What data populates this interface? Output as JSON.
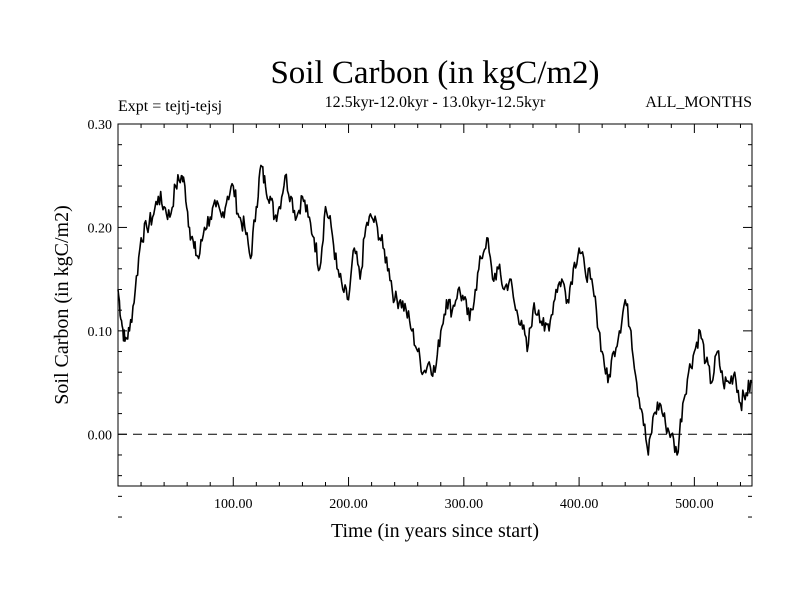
{
  "chart_data": {
    "type": "line",
    "title": "Soil Carbon (in kgC/m2)",
    "subtitle": "12.5kyr-12.0kyr - 13.0kyr-12.5kyr",
    "expt_label": "Expt = tejtj-tejsj",
    "months_label": "ALL_MONTHS",
    "xlabel": "Time (in years since start)",
    "ylabel": "Soil Carbon (in kgC/m2)",
    "xlim": [
      0,
      550
    ],
    "ylim": [
      -0.05,
      0.3
    ],
    "x_ticks": [
      100,
      200,
      300,
      400,
      500
    ],
    "x_tick_labels": [
      "100.00",
      "200.00",
      "300.00",
      "400.00",
      "500.00"
    ],
    "y_ticks": [
      0.0,
      0.1,
      0.2,
      0.3
    ],
    "y_tick_labels": [
      "0.00",
      "0.10",
      "0.20",
      "0.30"
    ],
    "reference_line": {
      "y": 0.0,
      "style": "dashed"
    },
    "line_color": "#000000",
    "series": [
      {
        "x": [
          0,
          3,
          6,
          10,
          15,
          20,
          25,
          30,
          35,
          40,
          45,
          50,
          55,
          58,
          62,
          66,
          70,
          75,
          80,
          85,
          90,
          95,
          100,
          105,
          110,
          115,
          120,
          124,
          128,
          132,
          136,
          140,
          145,
          150,
          155,
          160,
          165,
          170,
          175,
          180,
          185,
          190,
          195,
          200,
          205,
          210,
          215,
          220,
          225,
          230,
          235,
          240,
          245,
          250,
          255,
          260,
          265,
          270,
          275,
          280,
          285,
          290,
          295,
          300,
          305,
          310,
          315,
          320,
          325,
          330,
          335,
          340,
          345,
          350,
          355,
          360,
          365,
          370,
          375,
          380,
          385,
          390,
          395,
          400,
          405,
          410,
          415,
          420,
          425,
          430,
          435,
          440,
          445,
          450,
          455,
          460,
          465,
          470,
          475,
          480,
          485,
          490,
          495,
          500,
          505,
          510,
          515,
          520,
          525,
          530,
          535,
          540,
          545,
          550
        ],
        "y": [
          0.14,
          0.11,
          0.09,
          0.1,
          0.14,
          0.19,
          0.2,
          0.21,
          0.23,
          0.22,
          0.21,
          0.24,
          0.25,
          0.24,
          0.2,
          0.18,
          0.17,
          0.2,
          0.21,
          0.22,
          0.21,
          0.23,
          0.24,
          0.21,
          0.2,
          0.17,
          0.22,
          0.26,
          0.24,
          0.23,
          0.21,
          0.22,
          0.25,
          0.23,
          0.21,
          0.23,
          0.21,
          0.19,
          0.16,
          0.22,
          0.2,
          0.16,
          0.14,
          0.13,
          0.18,
          0.15,
          0.2,
          0.21,
          0.2,
          0.18,
          0.16,
          0.13,
          0.13,
          0.12,
          0.1,
          0.08,
          0.06,
          0.07,
          0.06,
          0.1,
          0.13,
          0.12,
          0.14,
          0.13,
          0.11,
          0.14,
          0.17,
          0.19,
          0.15,
          0.16,
          0.14,
          0.15,
          0.12,
          0.11,
          0.08,
          0.12,
          0.12,
          0.1,
          0.11,
          0.14,
          0.15,
          0.13,
          0.16,
          0.18,
          0.16,
          0.15,
          0.12,
          0.08,
          0.05,
          0.08,
          0.1,
          0.13,
          0.1,
          0.05,
          0.02,
          -0.02,
          0.02,
          0.03,
          0.01,
          0.0,
          -0.02,
          0.03,
          0.06,
          0.08,
          0.1,
          0.07,
          0.05,
          0.08,
          0.05,
          0.05,
          0.06,
          0.03,
          0.04,
          0.05
        ]
      }
    ]
  }
}
